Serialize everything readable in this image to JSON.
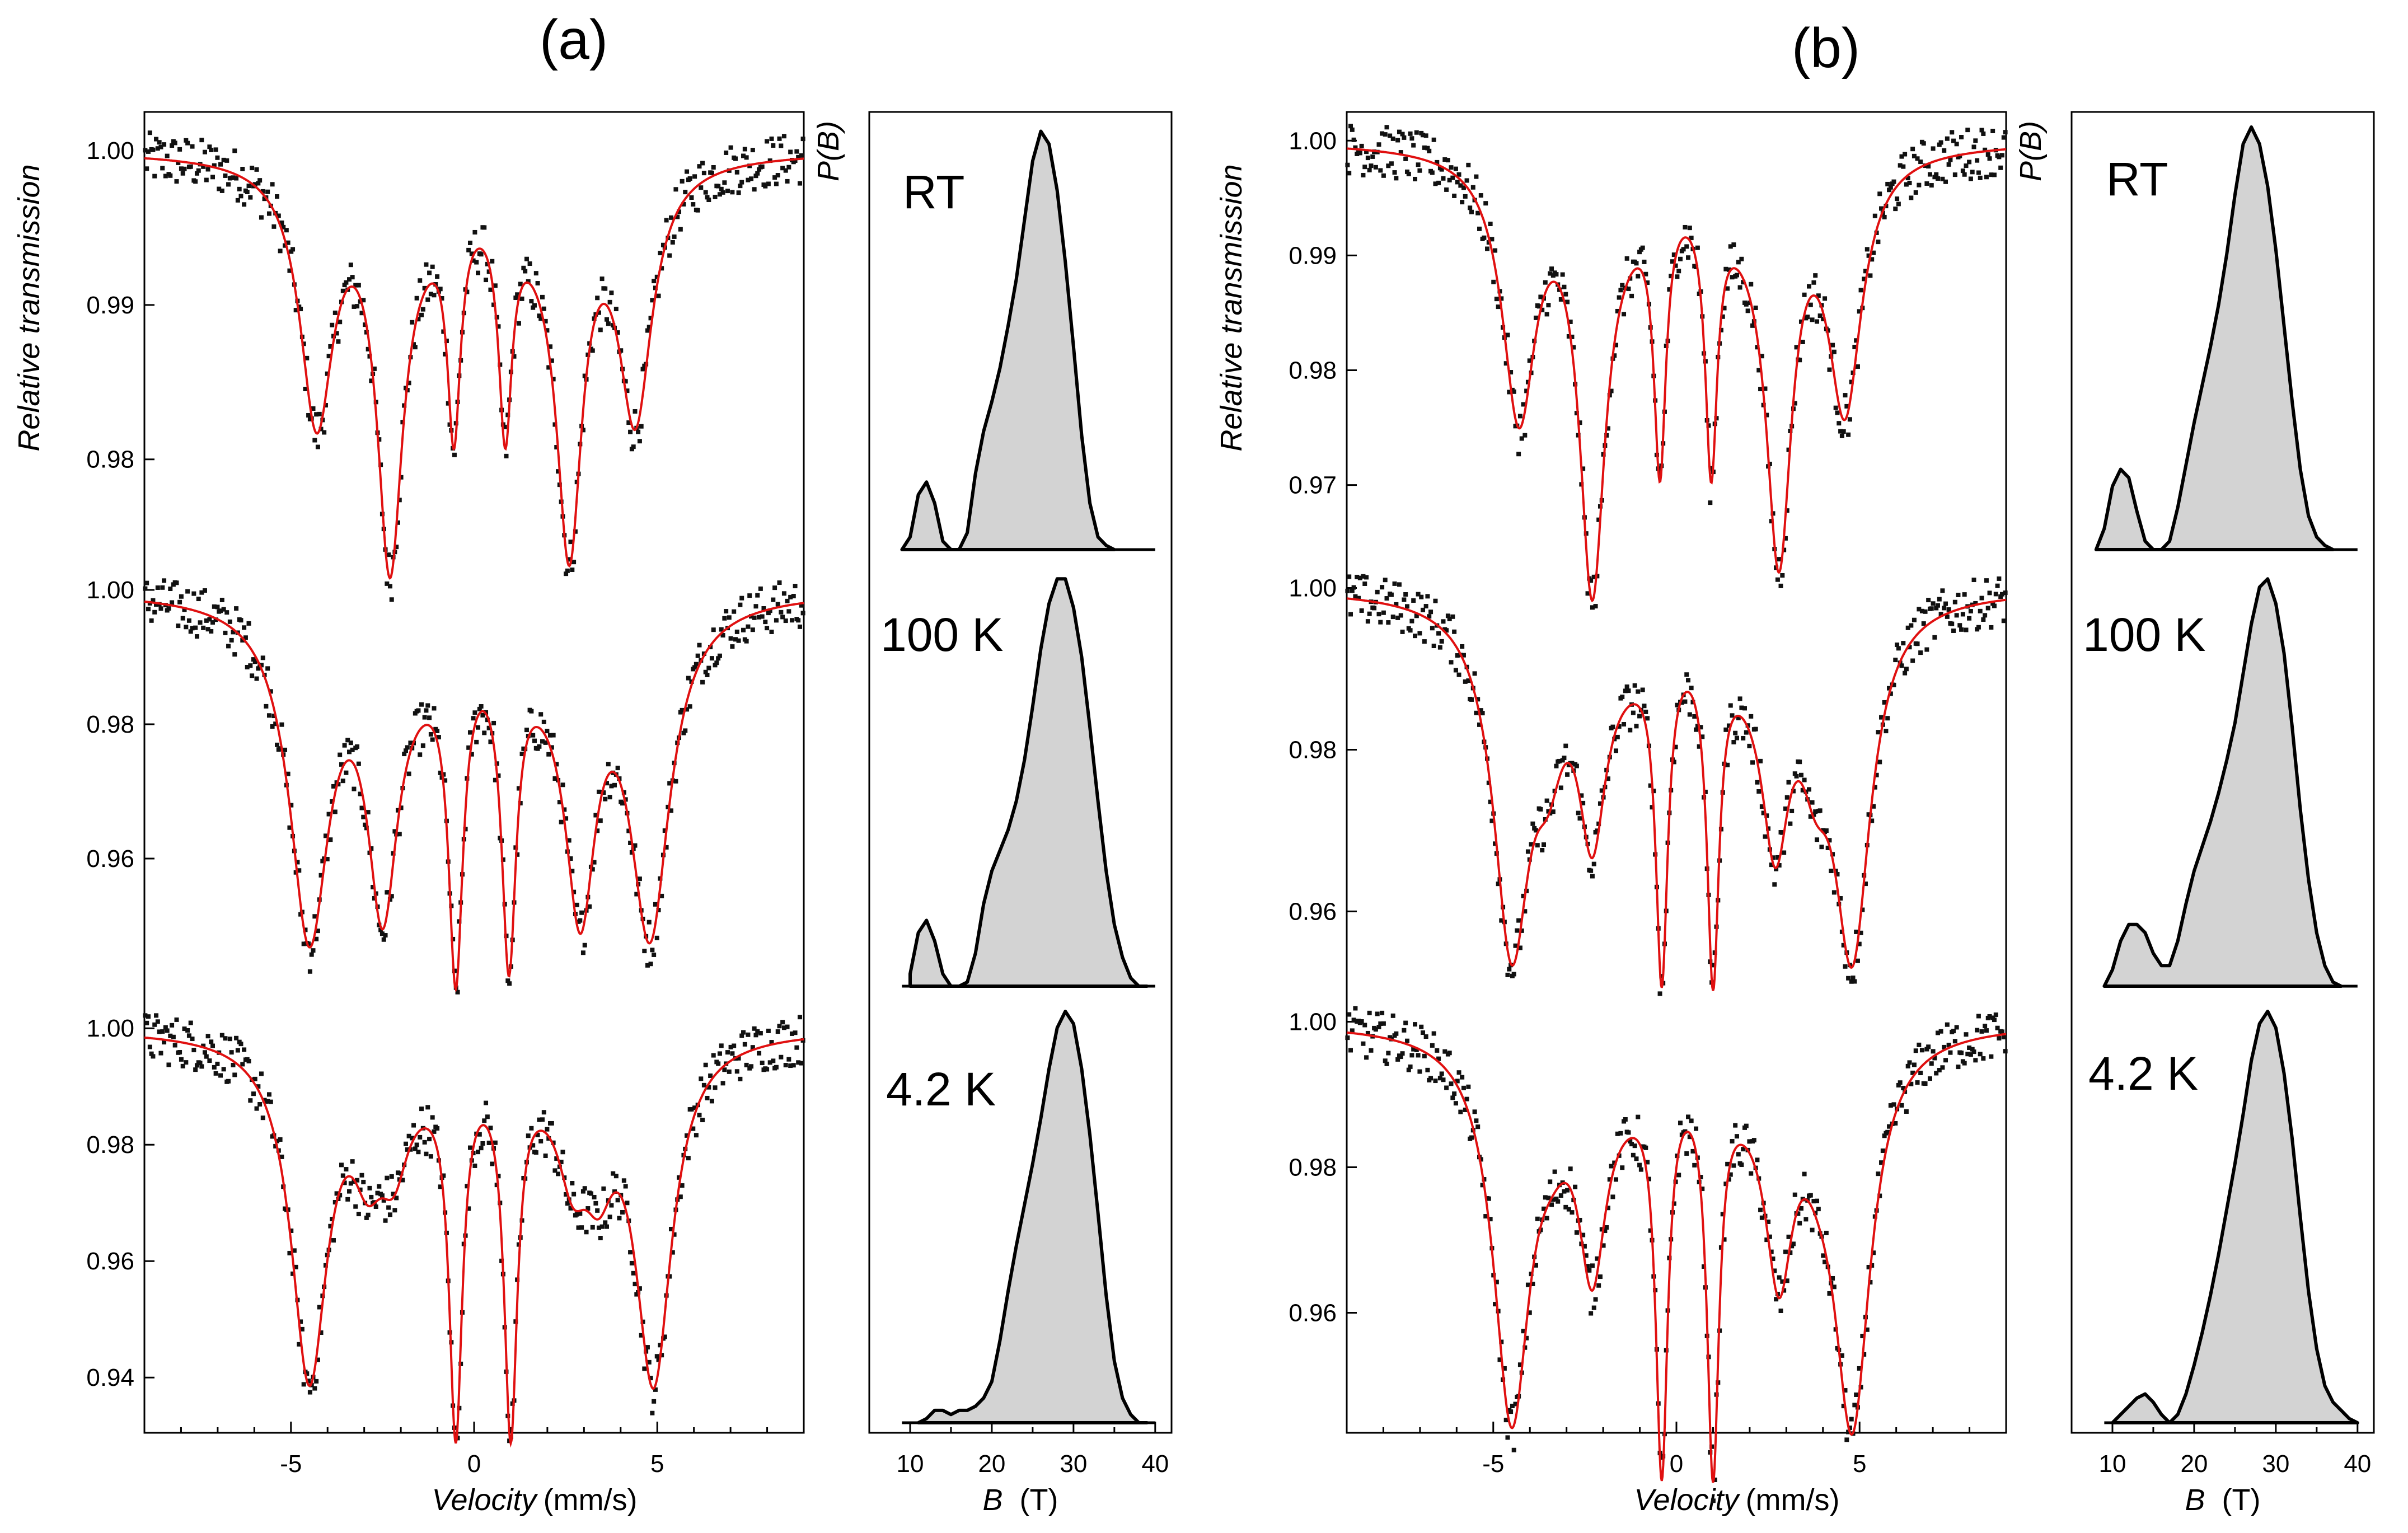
{
  "chart_data": [
    {
      "panel": "(a)",
      "type": "line",
      "xlabel_italic": "Velocity",
      "xlabel_unit": "(mm/s)",
      "ylabel": "Relative transmission",
      "xlim": [
        -9,
        9
      ],
      "xticks": [
        -5,
        0,
        5
      ],
      "series_line_type": "Mossbauer spectra: scattered data points (black) with fit (red)",
      "spectra": [
        {
          "name": "RT",
          "ylim": [
            0.9735,
            1.0025
          ],
          "yticks": [
            0.98,
            0.99,
            1.0
          ],
          "ytick_labels": [
            "0.98",
            "0.99",
            "1.00"
          ],
          "lines": [
            {
              "c": -4.3,
              "d": 0.0165,
              "w": 0.55
            },
            {
              "c": -2.3,
              "d": 0.0235,
              "w": 0.42
            },
            {
              "c": -0.55,
              "d": 0.0145,
              "w": 0.22
            },
            {
              "c": 0.85,
              "d": 0.0145,
              "w": 0.22
            },
            {
              "c": 2.6,
              "d": 0.0225,
              "w": 0.42
            },
            {
              "c": 4.4,
              "d": 0.016,
              "w": 0.55
            },
            {
              "c": -1.6,
              "d": 0.003,
              "w": 1.2
            },
            {
              "c": 1.9,
              "d": 0.003,
              "w": 1.2
            }
          ]
        },
        {
          "name": "100 K",
          "ylim": [
            0.9395,
            1.0045
          ],
          "yticks": [
            0.96,
            0.98,
            1.0
          ],
          "ytick_labels": [
            "0.96",
            "0.98",
            "1.00"
          ],
          "lines": [
            {
              "c": -4.5,
              "d": 0.049,
              "w": 0.65
            },
            {
              "c": -2.5,
              "d": 0.04,
              "w": 0.5
            },
            {
              "c": -0.5,
              "d": 0.048,
              "w": 0.24
            },
            {
              "c": 0.95,
              "d": 0.046,
              "w": 0.24
            },
            {
              "c": 2.9,
              "d": 0.04,
              "w": 0.5
            },
            {
              "c": 4.8,
              "d": 0.048,
              "w": 0.65
            },
            {
              "c": -1.5,
              "d": 0.006,
              "w": 1.3
            },
            {
              "c": 2.0,
              "d": 0.006,
              "w": 1.3
            }
          ]
        },
        {
          "name": "4.2 K",
          "ylim": [
            0.9305,
            1.0055
          ],
          "yticks": [
            0.94,
            0.96,
            0.98,
            1.0
          ],
          "ytick_labels": [
            "0.94",
            "0.96",
            "0.98",
            "1.00"
          ],
          "lines": [
            {
              "c": -4.5,
              "d": 0.058,
              "w": 0.6
            },
            {
              "c": -2.9,
              "d": 0.015,
              "w": 0.5
            },
            {
              "c": -2.2,
              "d": 0.015,
              "w": 0.5
            },
            {
              "c": -0.5,
              "d": 0.062,
              "w": 0.22
            },
            {
              "c": 1.0,
              "d": 0.062,
              "w": 0.22
            },
            {
              "c": 2.7,
              "d": 0.016,
              "w": 0.5
            },
            {
              "c": 3.4,
              "d": 0.016,
              "w": 0.5
            },
            {
              "c": 4.9,
              "d": 0.058,
              "w": 0.6
            },
            {
              "c": -1.4,
              "d": 0.004,
              "w": 1.3
            },
            {
              "c": 2.0,
              "d": 0.004,
              "w": 1.3
            }
          ]
        }
      ]
    },
    {
      "panel": "(a)",
      "type": "area",
      "xlabel_italic": "B",
      "xlabel_unit": "(T)",
      "ylabel": "P(B)",
      "xlim": [
        5,
        42
      ],
      "xticks": [
        10,
        20,
        30,
        40
      ],
      "distributions": [
        {
          "name": "RT",
          "x": [
            9,
            10,
            11,
            12,
            13,
            14,
            15,
            16,
            17,
            18,
            19,
            20,
            21,
            22,
            23,
            24,
            25,
            26,
            27,
            28,
            29,
            30,
            31,
            32,
            33,
            34,
            35
          ],
          "p": [
            0,
            0.03,
            0.13,
            0.16,
            0.11,
            0.02,
            0,
            0,
            0.04,
            0.18,
            0.28,
            0.35,
            0.43,
            0.53,
            0.64,
            0.78,
            0.92,
            0.99,
            0.96,
            0.85,
            0.68,
            0.48,
            0.27,
            0.11,
            0.03,
            0.01,
            0
          ]
        },
        {
          "name": "100 K",
          "x": [
            10,
            11,
            12,
            13,
            14,
            15,
            16,
            17,
            18,
            19,
            20,
            21,
            22,
            23,
            24,
            25,
            26,
            27,
            28,
            29,
            30,
            31,
            32,
            33,
            34,
            35,
            36,
            37,
            38,
            39
          ],
          "p": [
            0.03,
            0.13,
            0.16,
            0.11,
            0.03,
            0.0,
            0.0,
            0.01,
            0.08,
            0.2,
            0.28,
            0.33,
            0.38,
            0.45,
            0.55,
            0.68,
            0.82,
            0.93,
            0.99,
            0.99,
            0.92,
            0.8,
            0.63,
            0.45,
            0.28,
            0.15,
            0.07,
            0.02,
            0.0,
            0.0
          ]
        },
        {
          "name": "4.2 K",
          "x": [
            11,
            12,
            13,
            14,
            15,
            16,
            17,
            18,
            19,
            20,
            21,
            22,
            23,
            24,
            25,
            26,
            27,
            28,
            29,
            30,
            31,
            32,
            33,
            34,
            35,
            36,
            37,
            38,
            39
          ],
          "p": [
            0,
            0.01,
            0.03,
            0.03,
            0.02,
            0.03,
            0.03,
            0.04,
            0.06,
            0.1,
            0.2,
            0.32,
            0.43,
            0.53,
            0.63,
            0.74,
            0.86,
            0.96,
            1.0,
            0.97,
            0.86,
            0.7,
            0.51,
            0.31,
            0.15,
            0.06,
            0.02,
            0.0,
            0.0
          ]
        }
      ]
    },
    {
      "panel": "(b)",
      "type": "line",
      "xlabel_italic": "Velocity",
      "xlabel_unit": "(mm/s)",
      "ylabel": "Relative transmission",
      "xlim": [
        -9,
        9
      ],
      "xticks": [
        -5,
        0,
        5
      ],
      "series_line_type": "Mossbauer spectra: scattered data points (black) with fit (red)",
      "spectra": [
        {
          "name": "RT",
          "ylim": [
            0.9635,
            1.0025
          ],
          "yticks": [
            0.97,
            0.98,
            0.99,
            1.0
          ],
          "ytick_labels": [
            "0.97",
            "0.98",
            "0.99",
            "1.00"
          ],
          "lines": [
            {
              "c": -4.3,
              "d": 0.0225,
              "w": 0.55
            },
            {
              "c": -2.3,
              "d": 0.0345,
              "w": 0.42
            },
            {
              "c": -0.45,
              "d": 0.0235,
              "w": 0.2
            },
            {
              "c": 0.95,
              "d": 0.0235,
              "w": 0.2
            },
            {
              "c": 2.8,
              "d": 0.032,
              "w": 0.42
            },
            {
              "c": 4.6,
              "d": 0.0215,
              "w": 0.55
            },
            {
              "c": -1.6,
              "d": 0.004,
              "w": 1.2
            },
            {
              "c": 2.0,
              "d": 0.004,
              "w": 1.2
            }
          ]
        },
        {
          "name": "100 K",
          "ylim": [
            0.9495,
            1.0035
          ],
          "yticks": [
            0.96,
            0.98,
            1.0
          ],
          "ytick_labels": [
            "0.96",
            "0.98",
            "1.00"
          ],
          "lines": [
            {
              "c": -4.5,
              "d": 0.042,
              "w": 0.6
            },
            {
              "c": -3.5,
              "d": 0.012,
              "w": 0.5
            },
            {
              "c": -2.3,
              "d": 0.024,
              "w": 0.45
            },
            {
              "c": -0.4,
              "d": 0.041,
              "w": 0.2
            },
            {
              "c": 1.0,
              "d": 0.041,
              "w": 0.2
            },
            {
              "c": 2.7,
              "d": 0.024,
              "w": 0.45
            },
            {
              "c": 3.8,
              "d": 0.012,
              "w": 0.5
            },
            {
              "c": 4.8,
              "d": 0.042,
              "w": 0.6
            },
            {
              "c": -1.4,
              "d": 0.005,
              "w": 1.2
            },
            {
              "c": 2.0,
              "d": 0.005,
              "w": 1.2
            }
          ]
        },
        {
          "name": "4.2 K",
          "ylim": [
            0.9435,
            1.0035
          ],
          "yticks": [
            0.96,
            0.98,
            1.0
          ],
          "ytick_labels": [
            "0.96",
            "0.98",
            "1.00"
          ],
          "lines": [
            {
              "c": -4.5,
              "d": 0.052,
              "w": 0.6
            },
            {
              "c": -2.3,
              "d": 0.027,
              "w": 0.45
            },
            {
              "c": -0.4,
              "d": 0.054,
              "w": 0.2
            },
            {
              "c": 1.0,
              "d": 0.054,
              "w": 0.2
            },
            {
              "c": 2.8,
              "d": 0.027,
              "w": 0.45
            },
            {
              "c": 4.8,
              "d": 0.052,
              "w": 0.6
            },
            {
              "c": -3.4,
              "d": 0.006,
              "w": 0.6
            },
            {
              "c": 3.9,
              "d": 0.006,
              "w": 0.6
            },
            {
              "c": -1.4,
              "d": 0.005,
              "w": 1.2
            },
            {
              "c": 2.0,
              "d": 0.005,
              "w": 1.2
            }
          ]
        }
      ]
    },
    {
      "panel": "(b)",
      "type": "area",
      "xlabel_italic": "B",
      "xlabel_unit": "(T)",
      "ylabel": "P(B)",
      "xlim": [
        5,
        42
      ],
      "xticks": [
        10,
        20,
        30,
        40
      ],
      "distributions": [
        {
          "name": "RT",
          "x": [
            8,
            9,
            10,
            11,
            12,
            13,
            14,
            15,
            16,
            17,
            18,
            19,
            20,
            21,
            22,
            23,
            24,
            25,
            26,
            27,
            28,
            29,
            30,
            31,
            32,
            33,
            34,
            35,
            36,
            37
          ],
          "p": [
            0,
            0.05,
            0.15,
            0.19,
            0.17,
            0.09,
            0.02,
            0,
            0,
            0.02,
            0.1,
            0.2,
            0.3,
            0.39,
            0.48,
            0.58,
            0.7,
            0.84,
            0.96,
            1.0,
            0.96,
            0.86,
            0.71,
            0.53,
            0.35,
            0.19,
            0.08,
            0.03,
            0.01,
            0
          ]
        },
        {
          "name": "100 K",
          "x": [
            9,
            10,
            11,
            12,
            13,
            14,
            15,
            16,
            17,
            18,
            19,
            20,
            21,
            22,
            23,
            24,
            25,
            26,
            27,
            28,
            29,
            30,
            31,
            32,
            33,
            34,
            35,
            36,
            37,
            38
          ],
          "p": [
            0,
            0.04,
            0.11,
            0.15,
            0.15,
            0.13,
            0.08,
            0.05,
            0.05,
            0.11,
            0.2,
            0.28,
            0.34,
            0.4,
            0.47,
            0.55,
            0.64,
            0.76,
            0.88,
            0.97,
            0.99,
            0.93,
            0.81,
            0.63,
            0.43,
            0.26,
            0.13,
            0.05,
            0.01,
            0.0
          ]
        },
        {
          "name": "4.2 K",
          "x": [
            10,
            11,
            12,
            13,
            14,
            15,
            16,
            17,
            18,
            19,
            20,
            21,
            22,
            23,
            24,
            25,
            26,
            27,
            28,
            29,
            30,
            31,
            32,
            33,
            34,
            35,
            36,
            37,
            38,
            39,
            40
          ],
          "p": [
            0,
            0.02,
            0.04,
            0.06,
            0.07,
            0.05,
            0.02,
            0.0,
            0.02,
            0.07,
            0.14,
            0.22,
            0.31,
            0.41,
            0.52,
            0.63,
            0.75,
            0.88,
            0.97,
            1.0,
            0.96,
            0.85,
            0.69,
            0.5,
            0.32,
            0.18,
            0.09,
            0.05,
            0.03,
            0.01,
            0.0
          ]
        }
      ]
    }
  ],
  "labels": {
    "panel_a": "(a)",
    "panel_b": "(b)",
    "ylabel": "Relative transmission",
    "pb_label": "P(B)",
    "xlabel_velocity_italic": "Velocity",
    "xlabel_velocity_unit": "(mm/s)",
    "xlabel_b_italic": "B",
    "xlabel_b_unit": "(T)",
    "temps": [
      "RT",
      "100 K",
      "4.2 K"
    ]
  },
  "colors": {
    "fit": "#e01010",
    "points": "#111111",
    "fill": "#d3d3d3"
  }
}
